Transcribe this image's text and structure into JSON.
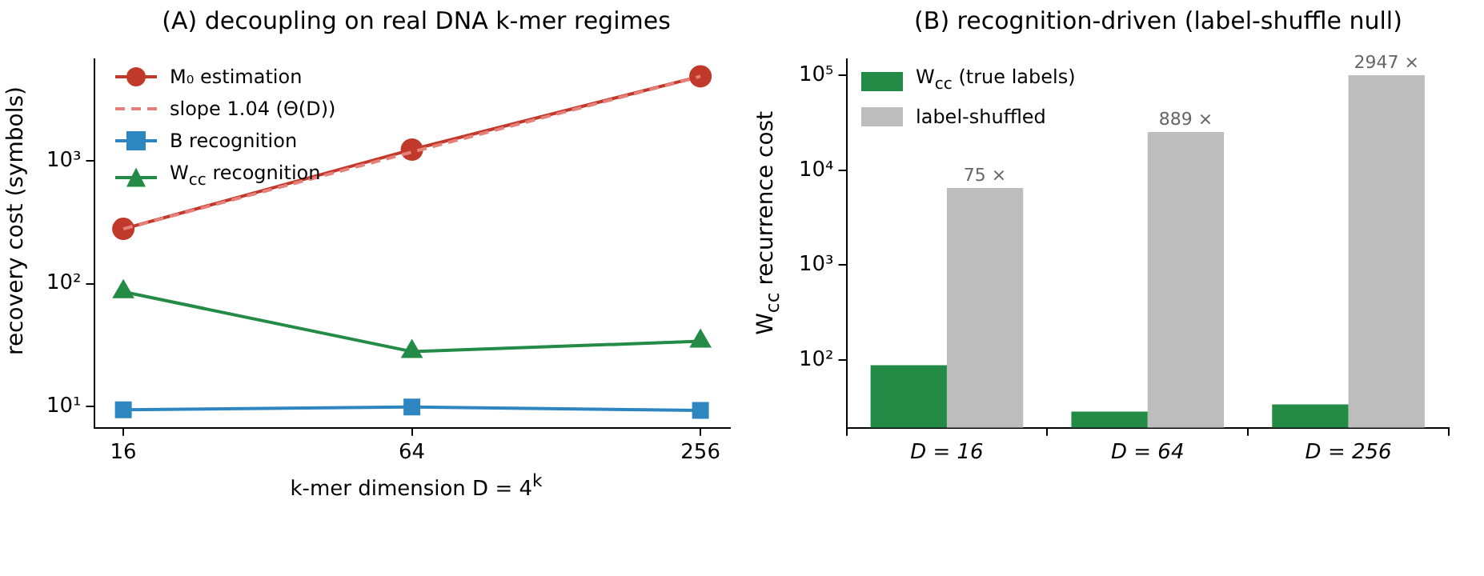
{
  "chart_data": [
    {
      "type": "line",
      "title": "(A) decoupling on real DNA k-mer regimes",
      "xlabel": "k-mer dimension D = 4$^{k}$",
      "ylabel": "recovery cost (symbols)",
      "x": [
        16,
        64,
        256
      ],
      "log": "xy",
      "xlim": [
        13.9,
        295
      ],
      "xticks": [
        16,
        64,
        256
      ],
      "ylim": [
        6.7,
        6800
      ],
      "yticks": [
        {
          "value": 10,
          "label": "10¹"
        },
        {
          "value": 100,
          "label": "10²"
        },
        {
          "value": 1000,
          "label": "10³"
        }
      ],
      "grid": false,
      "legend": "top left",
      "series": [
        {
          "name": "M₀ estimation",
          "color": "#c0392b",
          "marker": "circle",
          "line_style": "solid",
          "values": [
            280,
            1240,
            4900
          ]
        },
        {
          "name": "slope 1.04 (Θ(D))",
          "color": "#e8807a",
          "marker": "none",
          "line_style": "dashed",
          "values": [
            280,
            1184,
            4900
          ]
        },
        {
          "name": "B recognition",
          "color": "#2e86c1",
          "marker": "square",
          "line_style": "solid",
          "values": [
            9.4,
            9.9,
            9.3
          ]
        },
        {
          "name": "W$_{cc}$ recognition",
          "color": "#238b45",
          "marker": "triangle",
          "line_style": "solid",
          "values": [
            86,
            28,
            34
          ]
        }
      ]
    },
    {
      "type": "bar",
      "title": "(B) recognition-driven (label-shuffle null)",
      "ylabel": "W$_{cc}$ recurrence cost",
      "categories": [
        "D = 16",
        "D = 64",
        "D = 256"
      ],
      "log": true,
      "ylim": [
        19.2,
        150000
      ],
      "yticks": [
        {
          "value": 100,
          "label": "10²"
        },
        {
          "value": 1000,
          "label": "10³"
        },
        {
          "value": 10000,
          "label": "10⁴"
        },
        {
          "value": 100000,
          "label": "10⁵"
        }
      ],
      "grid": false,
      "legend": "top left",
      "series": [
        {
          "name": "W$_{cc}$ (true labels)",
          "color": "#238b45",
          "values": [
            88,
            28.5,
            34
          ]
        },
        {
          "name": "label-shuffled",
          "color": "#bdbdbd",
          "values": [
            6520,
            25400,
            101000
          ]
        }
      ],
      "annotations": [
        {
          "text": "75 ×",
          "x": "D = 16",
          "y": 6520
        },
        {
          "text": "889 ×",
          "x": "D = 64",
          "y": 25400
        },
        {
          "text": "2947 ×",
          "x": "D = 256",
          "y": 101000
        }
      ]
    }
  ]
}
